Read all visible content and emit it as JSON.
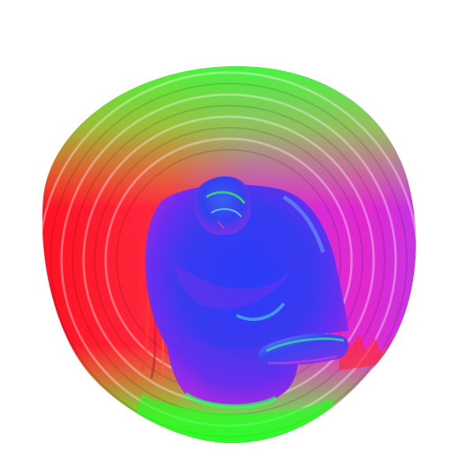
{
  "scene": {
    "background": "#ffffff",
    "render_style": "surface-normal-map",
    "subject": "torso-mesh-with-concentric-ring-artifacts",
    "palette": {
      "red": "#ff1a2a",
      "magenta": "#e023d6",
      "violet": "#7a2cf0",
      "blue": "#2f3df5",
      "green": "#2fff2a",
      "yellow_green": "#a8f235",
      "orange": "#f2743a"
    }
  }
}
